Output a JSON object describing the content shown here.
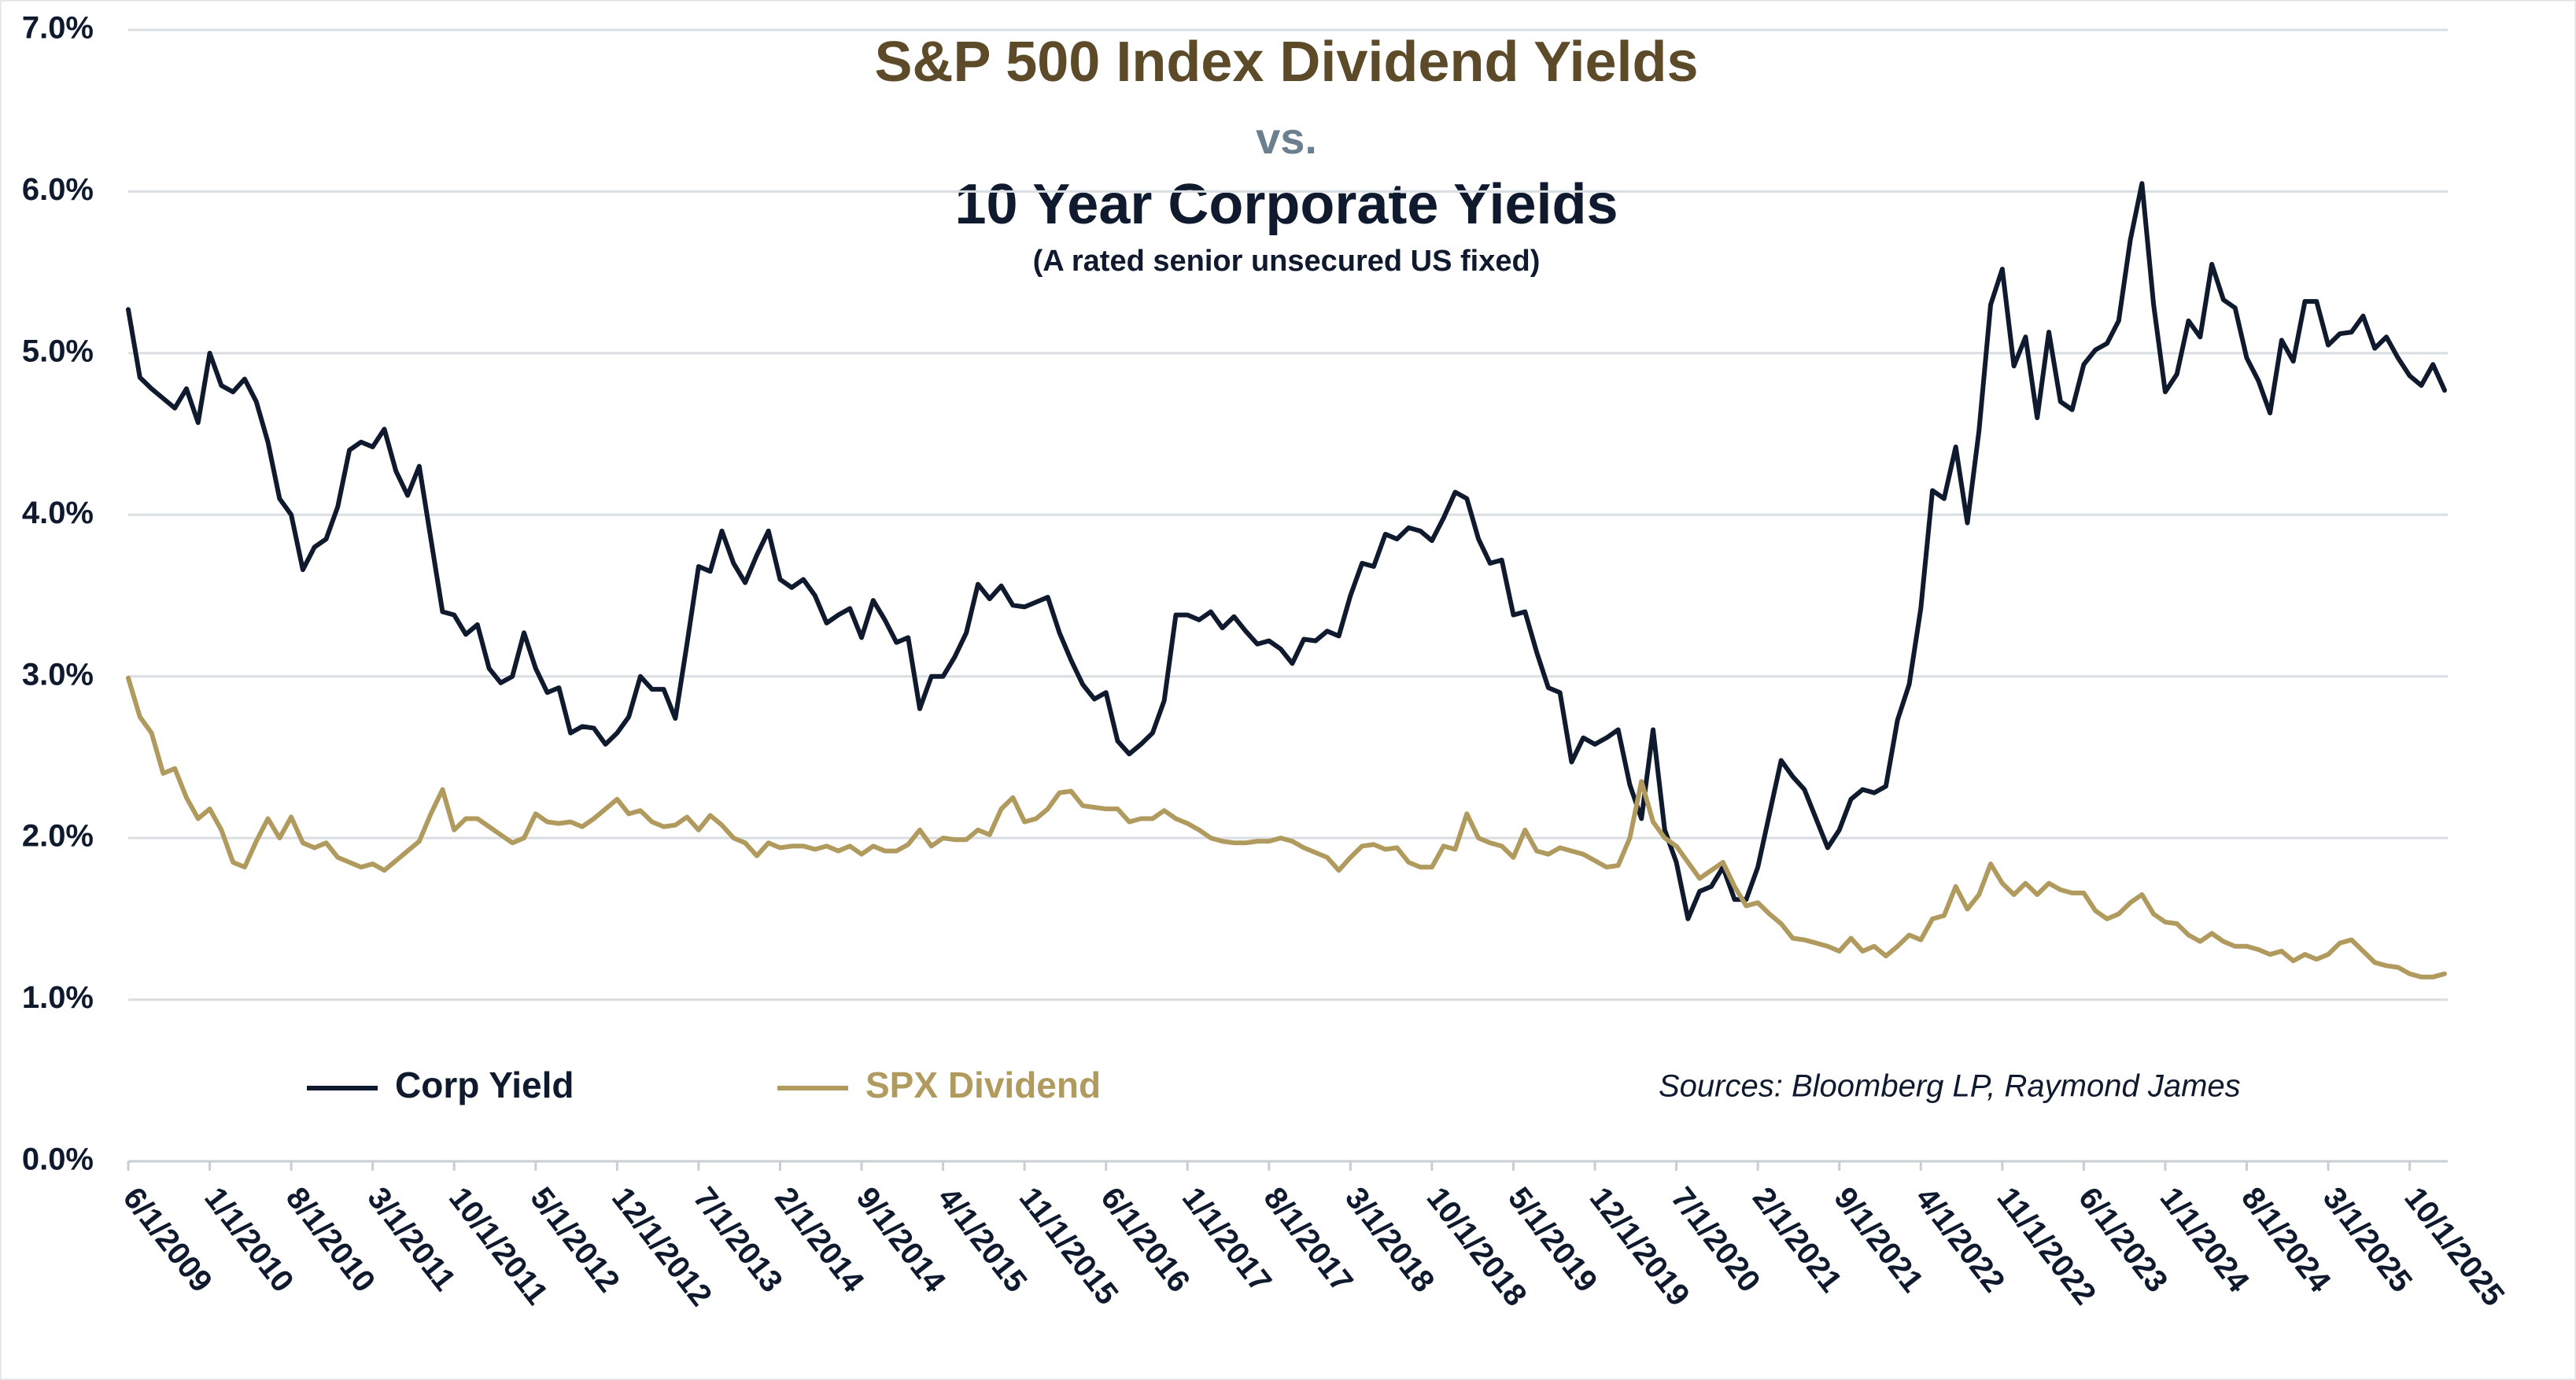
{
  "chart_data": {
    "type": "line",
    "title": "S&P 500 Index Dividend Yields",
    "title_connector": "vs.",
    "title_2": "10 Year Corporate Yields",
    "subtitle": "(A rated senior unsecured US fixed)",
    "source": "Sources: Bloomberg LP, Raymond James",
    "grid": true,
    "legend": "bottom-left",
    "ylim": [
      0,
      7
    ],
    "yticks": [
      {
        "value": 0,
        "label": "0.0%"
      },
      {
        "value": 1,
        "label": "1.0%"
      },
      {
        "value": 2,
        "label": "2.0%"
      },
      {
        "value": 3,
        "label": "3.0%"
      },
      {
        "value": 4,
        "label": "4.0%"
      },
      {
        "value": 5,
        "label": "5.0%"
      },
      {
        "value": 6,
        "label": "6.0%"
      },
      {
        "value": 7,
        "label": "7.0%"
      }
    ],
    "categories": [
      "6/1/2009",
      null,
      null,
      null,
      null,
      null,
      null,
      "1/1/2010",
      null,
      null,
      null,
      null,
      null,
      null,
      "8/1/2010",
      null,
      null,
      null,
      null,
      null,
      null,
      "3/1/2011",
      null,
      null,
      null,
      null,
      null,
      null,
      "10/1/2011",
      null,
      null,
      null,
      null,
      null,
      null,
      "5/1/2012",
      null,
      null,
      null,
      null,
      null,
      null,
      "12/1/2012",
      null,
      null,
      null,
      null,
      null,
      null,
      "7/1/2013",
      null,
      null,
      null,
      null,
      null,
      null,
      "2/1/2014",
      null,
      null,
      null,
      null,
      null,
      null,
      "9/1/2014",
      null,
      null,
      null,
      null,
      null,
      null,
      "4/1/2015",
      null,
      null,
      null,
      null,
      null,
      null,
      "11/1/2015",
      null,
      null,
      null,
      null,
      null,
      null,
      "6/1/2016",
      null,
      null,
      null,
      null,
      null,
      null,
      "1/1/2017",
      null,
      null,
      null,
      null,
      null,
      null,
      "8/1/2017",
      null,
      null,
      null,
      null,
      null,
      null,
      "3/1/2018",
      null,
      null,
      null,
      null,
      null,
      null,
      "10/1/2018",
      null,
      null,
      null,
      null,
      null,
      null,
      "5/1/2019",
      null,
      null,
      null,
      null,
      null,
      null,
      "12/1/2019",
      null,
      null,
      null,
      null,
      null,
      null,
      "7/1/2020",
      null,
      null,
      null,
      null,
      null,
      null,
      "2/1/2021",
      null,
      null,
      null,
      null,
      null,
      null,
      "9/1/2021",
      null,
      null,
      null,
      null,
      null,
      null,
      "4/1/2022",
      null,
      null,
      null,
      null,
      null,
      null,
      "11/1/2022",
      null,
      null,
      null,
      null,
      null,
      null,
      "6/1/2023",
      null,
      null,
      null,
      null,
      null,
      null,
      "1/1/2024",
      null,
      null,
      null,
      null,
      null,
      null,
      "8/1/2024",
      null,
      null,
      null,
      null,
      null,
      null,
      "3/1/2025",
      null,
      null,
      null,
      null,
      null,
      null,
      "10/1/2025",
      null,
      null,
      null
    ],
    "series": [
      {
        "name": "Corp Yield",
        "color": "#0f1a2e",
        "values": [
          5.27,
          4.85,
          4.78,
          4.72,
          4.66,
          4.78,
          4.57,
          5.0,
          4.8,
          4.76,
          4.84,
          4.7,
          4.45,
          4.1,
          4.0,
          3.66,
          3.8,
          3.85,
          4.05,
          4.4,
          4.45,
          4.42,
          4.53,
          4.27,
          4.12,
          4.3,
          3.85,
          3.4,
          3.38,
          3.26,
          3.32,
          3.05,
          2.96,
          3.0,
          3.27,
          3.05,
          2.9,
          2.93,
          2.65,
          2.69,
          2.68,
          2.58,
          2.65,
          2.75,
          3.0,
          2.92,
          2.92,
          2.74,
          3.2,
          3.68,
          3.65,
          3.9,
          3.7,
          3.58,
          3.75,
          3.9,
          3.6,
          3.55,
          3.6,
          3.5,
          3.33,
          3.38,
          3.42,
          3.24,
          3.47,
          3.35,
          3.21,
          3.24,
          2.8,
          3.0,
          3.0,
          3.12,
          3.27,
          3.57,
          3.48,
          3.56,
          3.44,
          3.43,
          3.46,
          3.49,
          3.27,
          3.1,
          2.95,
          2.86,
          2.9,
          2.6,
          2.52,
          2.58,
          2.65,
          2.85,
          3.38,
          3.38,
          3.35,
          3.4,
          3.3,
          3.37,
          3.28,
          3.2,
          3.22,
          3.17,
          3.08,
          3.23,
          3.22,
          3.28,
          3.25,
          3.5,
          3.7,
          3.68,
          3.88,
          3.85,
          3.92,
          3.9,
          3.84,
          3.98,
          4.14,
          4.1,
          3.85,
          3.7,
          3.72,
          3.38,
          3.4,
          3.15,
          2.93,
          2.9,
          2.47,
          2.62,
          2.58,
          2.62,
          2.67,
          2.33,
          2.12,
          2.67,
          2.05,
          1.85,
          1.5,
          1.67,
          1.7,
          1.82,
          1.62,
          1.62,
          1.82,
          2.15,
          2.48,
          2.38,
          2.3,
          2.12,
          1.94,
          2.05,
          2.24,
          2.3,
          2.28,
          2.32,
          2.73,
          2.95,
          3.42,
          4.15,
          4.1,
          4.42,
          3.95,
          4.52,
          5.3,
          5.52,
          4.92,
          5.1,
          4.6,
          5.13,
          4.7,
          4.65,
          4.93,
          5.02,
          5.06,
          5.2,
          5.7,
          6.05,
          5.3,
          4.76,
          4.87,
          5.2,
          5.1,
          5.55,
          5.33,
          5.28,
          4.97,
          4.83,
          4.63,
          5.08,
          4.95,
          5.32,
          5.32,
          5.05,
          5.12,
          5.13,
          5.23,
          5.03,
          5.1,
          4.97,
          4.86,
          4.8,
          4.93,
          4.77
        ]
      },
      {
        "name": "SPX Dividend",
        "color": "#b09a5e",
        "values": [
          2.99,
          2.75,
          2.65,
          2.4,
          2.43,
          2.25,
          2.12,
          2.18,
          2.05,
          1.85,
          1.82,
          1.98,
          2.12,
          2.0,
          2.13,
          1.97,
          1.94,
          1.97,
          1.88,
          1.85,
          1.82,
          1.84,
          1.8,
          1.86,
          1.92,
          1.98,
          2.15,
          2.3,
          2.05,
          2.12,
          2.12,
          2.07,
          2.02,
          1.97,
          2.0,
          2.15,
          2.1,
          2.09,
          2.1,
          2.07,
          2.12,
          2.18,
          2.24,
          2.15,
          2.17,
          2.1,
          2.07,
          2.08,
          2.13,
          2.05,
          2.14,
          2.08,
          2.0,
          1.97,
          1.89,
          1.97,
          1.94,
          1.95,
          1.95,
          1.93,
          1.95,
          1.92,
          1.95,
          1.9,
          1.95,
          1.92,
          1.92,
          1.96,
          2.05,
          1.95,
          2.0,
          1.99,
          1.99,
          2.05,
          2.02,
          2.18,
          2.25,
          2.1,
          2.12,
          2.18,
          2.28,
          2.29,
          2.2,
          2.19,
          2.18,
          2.18,
          2.1,
          2.12,
          2.12,
          2.17,
          2.12,
          2.09,
          2.05,
          2.0,
          1.98,
          1.97,
          1.97,
          1.98,
          1.98,
          2.0,
          1.98,
          1.94,
          1.91,
          1.88,
          1.8,
          1.88,
          1.95,
          1.96,
          1.93,
          1.94,
          1.85,
          1.82,
          1.82,
          1.95,
          1.93,
          2.15,
          2.0,
          1.97,
          1.95,
          1.88,
          2.05,
          1.92,
          1.9,
          1.94,
          1.92,
          1.9,
          1.86,
          1.82,
          1.83,
          2.0,
          2.35,
          2.1,
          2.0,
          1.95,
          1.85,
          1.75,
          1.8,
          1.85,
          1.7,
          1.58,
          1.6,
          1.53,
          1.47,
          1.38,
          1.37,
          1.35,
          1.33,
          1.3,
          1.38,
          1.3,
          1.33,
          1.27,
          1.33,
          1.4,
          1.37,
          1.5,
          1.52,
          1.7,
          1.56,
          1.65,
          1.84,
          1.72,
          1.65,
          1.72,
          1.65,
          1.72,
          1.68,
          1.66,
          1.66,
          1.55,
          1.5,
          1.53,
          1.6,
          1.65,
          1.53,
          1.48,
          1.47,
          1.4,
          1.36,
          1.41,
          1.36,
          1.33,
          1.33,
          1.31,
          1.28,
          1.3,
          1.24,
          1.28,
          1.25,
          1.28,
          1.35,
          1.37,
          1.3,
          1.23,
          1.21,
          1.2,
          1.16,
          1.14,
          1.14,
          1.16
        ]
      }
    ]
  }
}
